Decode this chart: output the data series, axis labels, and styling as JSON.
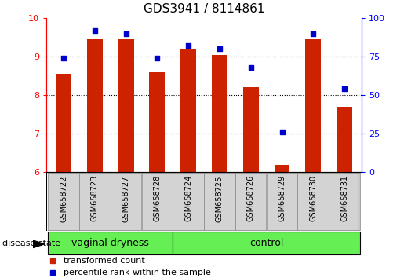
{
  "title": "GDS3941 / 8114861",
  "samples": [
    "GSM658722",
    "GSM658723",
    "GSM658727",
    "GSM658728",
    "GSM658724",
    "GSM658725",
    "GSM658726",
    "GSM658729",
    "GSM658730",
    "GSM658731"
  ],
  "red_values": [
    8.55,
    9.45,
    9.45,
    8.6,
    9.2,
    9.05,
    8.2,
    6.2,
    9.45,
    7.7
  ],
  "blue_values": [
    74,
    92,
    90,
    74,
    82,
    80,
    68,
    26,
    90,
    54
  ],
  "groups": [
    {
      "label": "vaginal dryness",
      "start": 0,
      "end": 4
    },
    {
      "label": "control",
      "start": 4,
      "end": 10
    }
  ],
  "ylim_left": [
    6,
    10
  ],
  "ylim_right": [
    0,
    100
  ],
  "yticks_left": [
    6,
    7,
    8,
    9,
    10
  ],
  "yticks_right": [
    0,
    25,
    50,
    75,
    100
  ],
  "bar_color": "#cc2200",
  "dot_color": "#0000cc",
  "group_bg_color": "#66ee55",
  "tick_bg_color": "#d3d3d3",
  "group_label_fontsize": 9,
  "tick_label_fontsize": 7,
  "legend_marker_size": 5,
  "bar_width": 0.5,
  "disease_state_label": "disease state"
}
